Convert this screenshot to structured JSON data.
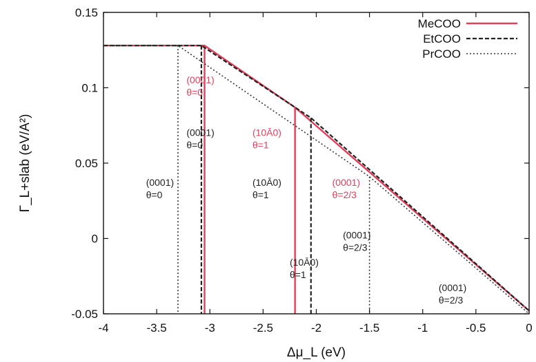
{
  "chart_data": {
    "type": "line",
    "title": "",
    "xlabel": "Δμ_L (eV)",
    "ylabel": "Γ_L+slab (eV/A²)",
    "xlim": [
      -4,
      0
    ],
    "ylim": [
      -0.05,
      0.15
    ],
    "x_ticks": [
      -4,
      -3.5,
      -3,
      -2.5,
      -2,
      -1.5,
      -1,
      -0.5,
      0
    ],
    "x_tick_labels": [
      "-4",
      "-3.5",
      "-3",
      "-2.5",
      "-2",
      "-1.5",
      "-1",
      "-0.5",
      "0"
    ],
    "y_ticks": [
      -0.05,
      0,
      0.05,
      0.1,
      0.15
    ],
    "y_tick_labels": [
      "-0.05",
      "0",
      "0.05",
      "0.1",
      "0.15"
    ],
    "grid": false,
    "legend_position": "top-right",
    "series": [
      {
        "name": "MeCOO",
        "color": "#e0405a",
        "style": "solid",
        "points": [
          [
            -4,
            0.128
          ],
          [
            -3.05,
            0.128
          ],
          [
            -2.2,
            0.087
          ],
          [
            0,
            -0.048
          ]
        ],
        "transitions": [
          -3.05,
          -2.2
        ]
      },
      {
        "name": "EtCOO",
        "color": "#222222",
        "style": "dashed",
        "points": [
          [
            -4,
            0.128
          ],
          [
            -3.08,
            0.128
          ],
          [
            -2.05,
            0.08
          ],
          [
            0,
            -0.048
          ]
        ],
        "transitions": [
          -3.08,
          -2.05
        ]
      },
      {
        "name": "PrCOO",
        "color": "#333333",
        "style": "dotted",
        "points": [
          [
            -4,
            0.128
          ],
          [
            -3.3,
            0.128
          ],
          [
            -1.5,
            0.041
          ],
          [
            0,
            -0.05
          ]
        ],
        "transitions": [
          -3.3,
          -1.5
        ]
      }
    ],
    "annotations": [
      {
        "id": "me-0001",
        "lines": [
          "(0001)",
          "θ=0"
        ],
        "x": -3.22,
        "y": 0.103,
        "color": "#e0405a"
      },
      {
        "id": "et-0001",
        "lines": [
          "(0001)",
          "θ=0"
        ],
        "x": -3.22,
        "y": 0.068,
        "color": "#222222"
      },
      {
        "id": "pr-0001",
        "lines": [
          "(0001)",
          "θ=0"
        ],
        "x": -3.6,
        "y": 0.035,
        "color": "#222222"
      },
      {
        "id": "me-1010",
        "lines": [
          "(10Ā0)",
          "θ=1"
        ],
        "x": -2.6,
        "y": 0.068,
        "color": "#e0405a"
      },
      {
        "id": "et-1010",
        "lines": [
          "(10Ā0)",
          "θ=1"
        ],
        "x": -2.6,
        "y": 0.035,
        "color": "#222222"
      },
      {
        "id": "pr-1010",
        "lines": [
          "(10Ā0)",
          "θ=1"
        ],
        "x": -2.25,
        "y": -0.018,
        "color": "#222222"
      },
      {
        "id": "me-0001-23",
        "lines": [
          "(0001)",
          "θ=2/3"
        ],
        "x": -1.85,
        "y": 0.035,
        "color": "#e0405a"
      },
      {
        "id": "et-0001-23",
        "lines": [
          "(0001)",
          "θ=2/3"
        ],
        "x": -1.75,
        "y": 0.0,
        "color": "#222222"
      },
      {
        "id": "pr-0001-23",
        "lines": [
          "(0001)",
          "θ=2/3"
        ],
        "x": -0.85,
        "y": -0.035,
        "color": "#222222"
      }
    ]
  }
}
